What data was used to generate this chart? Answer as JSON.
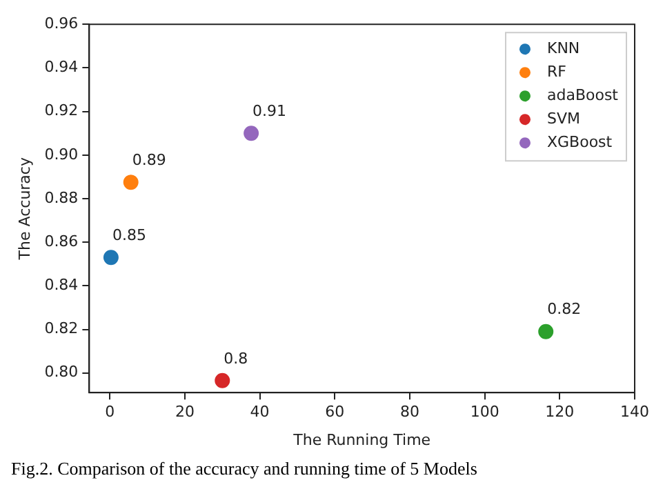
{
  "chart_data": {
    "type": "scatter",
    "xlabel": "The Running Time",
    "ylabel": "The Accuracy",
    "annotations": [
      "Fig.2. Comparison of the accuracy and running time of 5 Models"
    ],
    "series": [
      {
        "name": "KNN",
        "color": "#1f77b4",
        "x": [
          0.3
        ],
        "values": [
          0.853
        ],
        "value_labels": [
          "0.85"
        ]
      },
      {
        "name": "RF",
        "color": "#ff7f0e",
        "x": [
          5.6
        ],
        "values": [
          0.8875
        ],
        "value_labels": [
          "0.89"
        ]
      },
      {
        "name": "adaBoost",
        "color": "#2ca02c",
        "x": [
          116.3
        ],
        "values": [
          0.819
        ],
        "value_labels": [
          "0.82"
        ]
      },
      {
        "name": "SVM",
        "color": "#d62728",
        "x": [
          30
        ],
        "values": [
          0.7965
        ],
        "value_labels": [
          "0.8"
        ]
      },
      {
        "name": "XGBoost",
        "color": "#9467bd",
        "x": [
          37.7
        ],
        "values": [
          0.91
        ],
        "value_labels": [
          "0.91"
        ]
      }
    ],
    "xlim": [
      -5.5,
      140
    ],
    "xticks": [
      0,
      20,
      40,
      60,
      80,
      100,
      120,
      140
    ],
    "ylim": [
      0.791,
      0.96
    ],
    "yticks": [
      {
        "value": 0.8,
        "label": "0.80"
      },
      0.82,
      0.84,
      0.86,
      0.88,
      {
        "value": 0.9,
        "label": "0.90"
      },
      0.92,
      0.94,
      0.96
    ],
    "grid": false,
    "legend": "top right",
    "marker": "circle"
  }
}
